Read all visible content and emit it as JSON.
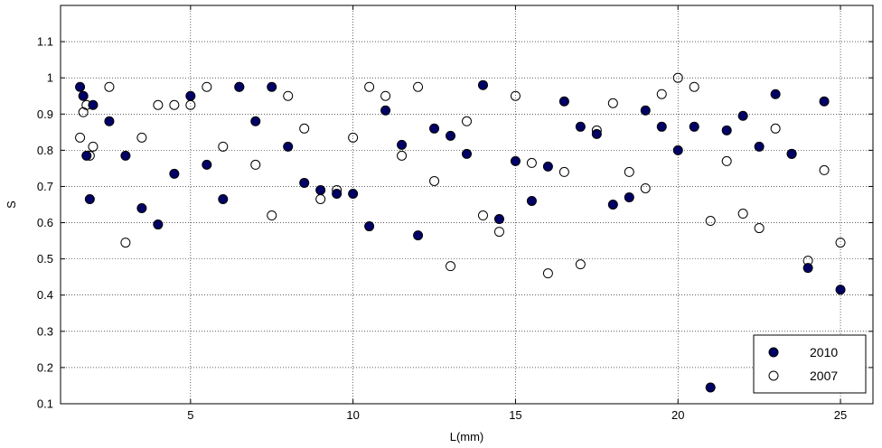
{
  "chart_data": {
    "type": "scatter",
    "title": "",
    "xlabel": "L(mm)",
    "ylabel": "S",
    "xlim": [
      1,
      26
    ],
    "ylim": [
      0.1,
      1.2
    ],
    "xticks": [
      5,
      10,
      15,
      20,
      25
    ],
    "xtick_labels": [
      "5",
      "10",
      "15",
      "20",
      "25"
    ],
    "yticks": [
      0.1,
      0.2,
      0.3,
      0.4,
      0.5,
      0.6,
      0.7,
      0.8,
      0.9,
      1.0,
      1.1
    ],
    "ytick_labels": [
      "0.1",
      "0.2",
      "0.3",
      "0.4",
      "0.5",
      "0.6",
      "0.7",
      "0.8",
      "0.9",
      "1",
      "1.1"
    ],
    "grid": true,
    "legend_position": "bottom-right",
    "series": [
      {
        "name": "2010",
        "marker": "filled-circle",
        "color": "#000066",
        "points": [
          [
            1.6,
            0.975
          ],
          [
            1.7,
            0.95
          ],
          [
            1.8,
            0.785
          ],
          [
            1.9,
            0.665
          ],
          [
            2.0,
            0.925
          ],
          [
            2.5,
            0.88
          ],
          [
            3.0,
            0.785
          ],
          [
            3.5,
            0.64
          ],
          [
            4.0,
            0.595
          ],
          [
            4.5,
            0.735
          ],
          [
            5.0,
            0.95
          ],
          [
            5.5,
            0.76
          ],
          [
            6.0,
            0.665
          ],
          [
            6.5,
            0.975
          ],
          [
            7.0,
            0.88
          ],
          [
            7.5,
            0.975
          ],
          [
            8.0,
            0.81
          ],
          [
            8.5,
            0.71
          ],
          [
            9.0,
            0.69
          ],
          [
            9.5,
            0.68
          ],
          [
            10.0,
            0.68
          ],
          [
            10.5,
            0.59
          ],
          [
            11.0,
            0.91
          ],
          [
            11.5,
            0.815
          ],
          [
            12.0,
            0.565
          ],
          [
            12.5,
            0.86
          ],
          [
            13.0,
            0.84
          ],
          [
            13.5,
            0.79
          ],
          [
            14.0,
            0.98
          ],
          [
            14.5,
            0.61
          ],
          [
            15.0,
            0.77
          ],
          [
            15.5,
            0.66
          ],
          [
            16.0,
            0.755
          ],
          [
            16.5,
            0.935
          ],
          [
            17.0,
            0.865
          ],
          [
            17.5,
            0.845
          ],
          [
            18.0,
            0.65
          ],
          [
            18.5,
            0.67
          ],
          [
            19.0,
            0.91
          ],
          [
            19.5,
            0.865
          ],
          [
            20.0,
            0.8
          ],
          [
            20.5,
            0.865
          ],
          [
            21.0,
            0.145
          ],
          [
            21.5,
            0.855
          ],
          [
            22.0,
            0.895
          ],
          [
            22.5,
            0.81
          ],
          [
            23.0,
            0.955
          ],
          [
            23.5,
            0.79
          ],
          [
            24.0,
            0.475
          ],
          [
            24.5,
            0.935
          ],
          [
            25.0,
            0.415
          ]
        ]
      },
      {
        "name": "2007",
        "marker": "open-circle",
        "color": "#000000",
        "points": [
          [
            1.6,
            0.835
          ],
          [
            1.7,
            0.905
          ],
          [
            1.8,
            0.925
          ],
          [
            1.9,
            0.785
          ],
          [
            2.0,
            0.81
          ],
          [
            2.5,
            0.975
          ],
          [
            3.0,
            0.545
          ],
          [
            3.5,
            0.835
          ],
          [
            4.0,
            0.925
          ],
          [
            4.5,
            0.925
          ],
          [
            5.0,
            0.925
          ],
          [
            5.5,
            0.975
          ],
          [
            6.0,
            0.81
          ],
          [
            6.5,
            0.975
          ],
          [
            7.0,
            0.76
          ],
          [
            7.5,
            0.62
          ],
          [
            8.0,
            0.95
          ],
          [
            8.5,
            0.86
          ],
          [
            9.0,
            0.665
          ],
          [
            9.5,
            0.69
          ],
          [
            10.0,
            0.835
          ],
          [
            10.5,
            0.975
          ],
          [
            11.0,
            0.95
          ],
          [
            11.5,
            0.785
          ],
          [
            12.0,
            0.975
          ],
          [
            12.5,
            0.715
          ],
          [
            13.0,
            0.48
          ],
          [
            13.5,
            0.88
          ],
          [
            14.0,
            0.62
          ],
          [
            14.5,
            0.575
          ],
          [
            15.0,
            0.95
          ],
          [
            15.5,
            0.765
          ],
          [
            16.0,
            0.46
          ],
          [
            16.5,
            0.74
          ],
          [
            17.0,
            0.485
          ],
          [
            17.5,
            0.855
          ],
          [
            18.0,
            0.93
          ],
          [
            18.5,
            0.74
          ],
          [
            19.0,
            0.695
          ],
          [
            19.5,
            0.955
          ],
          [
            20.0,
            1.0
          ],
          [
            20.5,
            0.975
          ],
          [
            21.0,
            0.605
          ],
          [
            21.5,
            0.77
          ],
          [
            22.0,
            0.625
          ],
          [
            22.5,
            0.585
          ],
          [
            23.0,
            0.86
          ],
          [
            23.5,
            0.79
          ],
          [
            24.0,
            0.495
          ],
          [
            24.5,
            0.745
          ],
          [
            25.0,
            0.545
          ]
        ]
      }
    ]
  }
}
